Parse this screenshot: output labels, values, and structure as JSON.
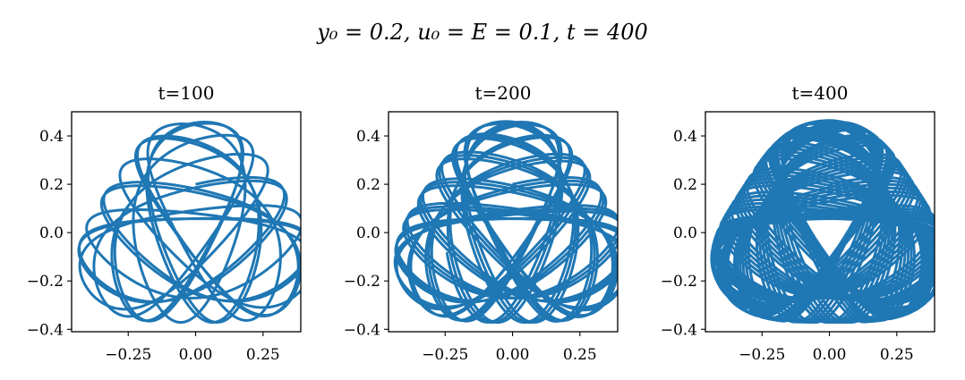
{
  "figure": {
    "suptitle": "y₀ = 0.2, u₀ = E = 0.1, t = 400"
  },
  "chart_data": [
    {
      "type": "line",
      "title": "t=100",
      "xlabel": "",
      "ylabel": "",
      "xlim": [
        -0.46,
        0.39
      ],
      "ylim": [
        -0.41,
        0.5
      ],
      "xticks": [
        -0.25,
        0.0,
        0.25
      ],
      "xtick_labels": [
        "−0.25",
        "0.00",
        "0.25"
      ],
      "yticks": [
        -0.4,
        -0.2,
        0.0,
        0.2,
        0.4
      ],
      "ytick_labels": [
        "−0.4",
        "−0.2",
        "0.0",
        "0.2",
        "0.4"
      ],
      "series": [
        {
          "t_max": 100,
          "color": "#1f77b4"
        }
      ],
      "grid": false
    },
    {
      "type": "line",
      "title": "t=200",
      "xlabel": "",
      "ylabel": "",
      "xlim": [
        -0.46,
        0.39
      ],
      "ylim": [
        -0.41,
        0.5
      ],
      "xticks": [
        -0.25,
        0.0,
        0.25
      ],
      "xtick_labels": [
        "−0.25",
        "0.00",
        "0.25"
      ],
      "yticks": [
        -0.4,
        -0.2,
        0.0,
        0.2,
        0.4
      ],
      "ytick_labels": [
        "−0.4",
        "−0.2",
        "0.0",
        "0.2",
        "0.4"
      ],
      "series": [
        {
          "t_max": 200,
          "color": "#1f77b4"
        }
      ],
      "grid": false
    },
    {
      "type": "line",
      "title": "t=400",
      "xlabel": "",
      "ylabel": "",
      "xlim": [
        -0.46,
        0.39
      ],
      "ylim": [
        -0.41,
        0.5
      ],
      "xticks": [
        -0.25,
        0.0,
        0.25
      ],
      "xtick_labels": [
        "−0.25",
        "0.00",
        "0.25"
      ],
      "yticks": [
        -0.4,
        -0.2,
        0.0,
        0.2,
        0.4
      ],
      "ytick_labels": [
        "−0.4",
        "−0.2",
        "0.0",
        "0.2",
        "0.4"
      ],
      "series": [
        {
          "t_max": 400,
          "color": "#1f77b4"
        }
      ],
      "grid": false
    }
  ]
}
